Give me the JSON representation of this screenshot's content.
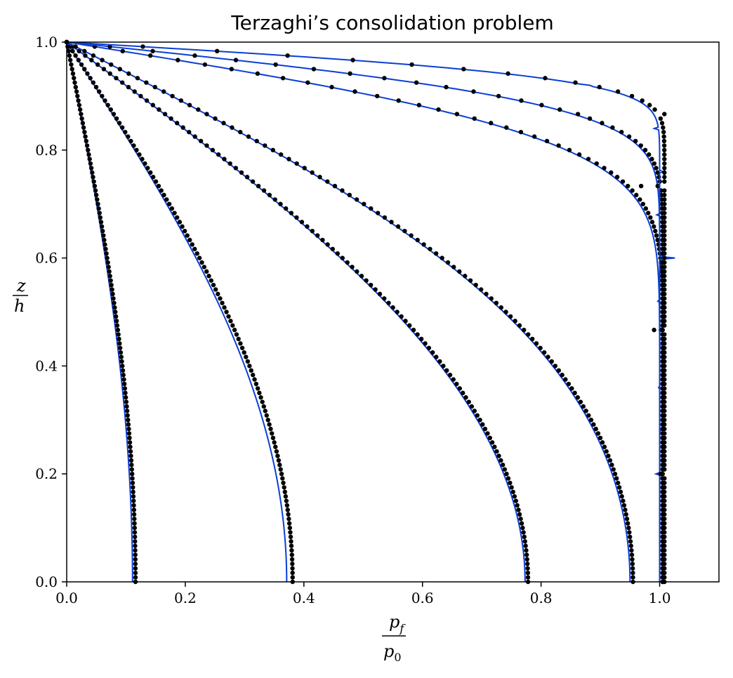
{
  "chart_data": {
    "type": "line",
    "title": "Terzaghi’s consolidation problem",
    "xlabel": {
      "numerator": "p",
      "numerator_sub": "f",
      "denominator": "p",
      "denominator_sub": "0"
    },
    "ylabel": {
      "numerator": "z",
      "denominator": "h"
    },
    "xlim": [
      0.0,
      1.1
    ],
    "ylim": [
      0.0,
      1.0
    ],
    "xticks": [
      "0.0",
      "0.2",
      "0.4",
      "0.6",
      "0.8",
      "1.0"
    ],
    "yticks": [
      "0.0",
      "0.2",
      "0.4",
      "0.6",
      "0.8",
      "1.0"
    ],
    "grid": false,
    "legend": "none",
    "colors": {
      "analytical": "#0a3fd6",
      "numerical": "#000000"
    },
    "series": [
      {
        "style": "solid-line",
        "color": "#0a3fd6",
        "curves": [
          {
            "p_bottom": 0.111,
            "shape": "low-T"
          },
          {
            "p_bottom": 0.371,
            "shape": "mid-T"
          },
          {
            "p_bottom": 0.773,
            "shape": "mid-high-T"
          },
          {
            "p_bottom": 0.95,
            "shape": "high-T-1"
          },
          {
            "p_bottom": 0.999,
            "shape": "high-T-2"
          },
          {
            "p_bottom": 1.0,
            "shape": "high-T-3"
          },
          {
            "p_bottom": 1.0,
            "shape": "high-T-4"
          }
        ]
      },
      {
        "style": "dots",
        "color": "#000000",
        "curves": [
          {
            "p_bottom": 0.116
          },
          {
            "p_bottom": 0.381
          },
          {
            "p_bottom": 0.778
          },
          {
            "p_bottom": 0.955
          },
          {
            "p_bottom": 1.005
          },
          {
            "p_bottom": 1.005
          },
          {
            "p_bottom": 1.008
          }
        ]
      }
    ]
  }
}
